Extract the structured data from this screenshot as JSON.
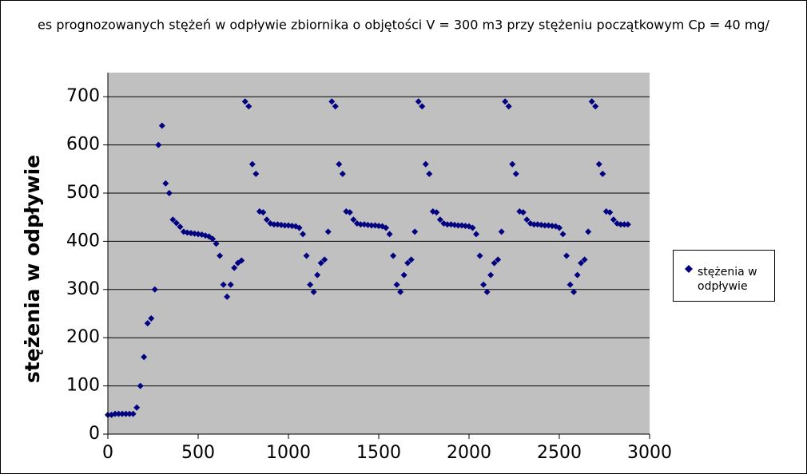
{
  "chart_data": {
    "type": "scatter",
    "title": "es prognozowanych stężeń w odpływie zbiornika o objętości V = 300 m3 przy stężeniu początkowym Cp = 40 mg/",
    "y_label": "stężenia w odpływie",
    "xlim": [
      0,
      3000
    ],
    "xticks": [
      0,
      500,
      1000,
      1500,
      2000,
      2500,
      3000
    ],
    "ylim": [
      0,
      750
    ],
    "yticks": [
      0,
      100,
      200,
      300,
      400,
      500,
      600,
      700
    ],
    "grid": true,
    "legend": "right",
    "series": [
      {
        "name": "stężenia w odpływie",
        "color": "#000080",
        "x": [
          0,
          20,
          40,
          60,
          80,
          100,
          120,
          140,
          160,
          180,
          200,
          220,
          240,
          260,
          280,
          300,
          320,
          340,
          360,
          380,
          400,
          420,
          440,
          460,
          480,
          500,
          520,
          540,
          560,
          580,
          600,
          620,
          640,
          660,
          680,
          700,
          720,
          740,
          760,
          780,
          800,
          820,
          840,
          860,
          880,
          900,
          920,
          940,
          960,
          980,
          1000,
          1020,
          1040,
          1060,
          1080,
          1100,
          1120,
          1140,
          1160,
          1180,
          1200,
          1220,
          1240,
          1260,
          1280,
          1300,
          1320,
          1340,
          1360,
          1380,
          1400,
          1420,
          1440,
          1460,
          1480,
          1500,
          1520,
          1540,
          1560,
          1580,
          1600,
          1620,
          1640,
          1660,
          1680,
          1700,
          1720,
          1740,
          1760,
          1780,
          1800,
          1820,
          1840,
          1860,
          1880,
          1900,
          1920,
          1940,
          1960,
          1980,
          2000,
          2020,
          2040,
          2060,
          2080,
          2100,
          2120,
          2140,
          2160,
          2180,
          2200,
          2220,
          2240,
          2260,
          2280,
          2300,
          2320,
          2340,
          2360,
          2380,
          2400,
          2420,
          2440,
          2460,
          2480,
          2500,
          2520,
          2540,
          2560,
          2580,
          2600,
          2620,
          2640,
          2660,
          2680,
          2700,
          2720,
          2740,
          2760,
          2780,
          2800,
          2820,
          2840,
          2860,
          2880
        ],
        "values": [
          40,
          40,
          42,
          42,
          42,
          42,
          42,
          42,
          55,
          100,
          160,
          230,
          240,
          300,
          600,
          640,
          520,
          500,
          445,
          438,
          430,
          420,
          418,
          417,
          416,
          415,
          414,
          412,
          410,
          405,
          395,
          370,
          310,
          285,
          310,
          345,
          355,
          360,
          690,
          680,
          560,
          540,
          462,
          460,
          445,
          437,
          435,
          435,
          434,
          433,
          433,
          432,
          431,
          428,
          415,
          370,
          310,
          295,
          330,
          355,
          362,
          420,
          690,
          680,
          560,
          540,
          462,
          460,
          445,
          437,
          435,
          435,
          434,
          433,
          433,
          432,
          431,
          428,
          415,
          370,
          310,
          295,
          330,
          355,
          362,
          420,
          690,
          680,
          560,
          540,
          462,
          460,
          445,
          437,
          435,
          435,
          434,
          433,
          433,
          432,
          431,
          428,
          415,
          370,
          310,
          295,
          330,
          355,
          362,
          420,
          690,
          680,
          560,
          540,
          462,
          460,
          445,
          437,
          435,
          435,
          434,
          433,
          433,
          432,
          431,
          428,
          415,
          370,
          310,
          295,
          330,
          355,
          362,
          420,
          690,
          680,
          560,
          540,
          462,
          460,
          445,
          437,
          435,
          435,
          435
        ]
      }
    ]
  }
}
